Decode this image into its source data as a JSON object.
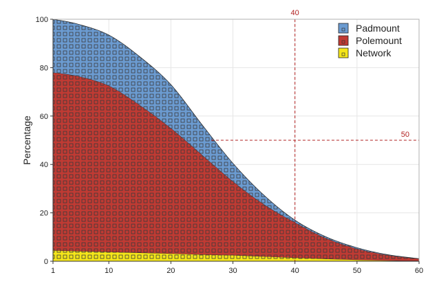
{
  "chart_data": {
    "type": "area",
    "stacked": true,
    "ylabel": "Percentage",
    "xlabel": "",
    "xlim": [
      1,
      60
    ],
    "ylim": [
      0,
      100
    ],
    "x_ticks": [
      1,
      10,
      20,
      30,
      40,
      50,
      60
    ],
    "y_ticks": [
      0,
      20,
      40,
      60,
      80,
      100
    ],
    "grid": true,
    "legend_position": "top-right",
    "x": [
      1,
      5,
      10,
      15,
      20,
      25,
      30,
      35,
      40,
      45,
      50,
      55,
      60
    ],
    "series": [
      {
        "name": "Network",
        "color": "#f5e619",
        "values": [
          4.5,
          4.2,
          3.9,
          3.5,
          3.2,
          2.8,
          2.5,
          2.0,
          1.5,
          1.0,
          0.6,
          0.3,
          0.2
        ]
      },
      {
        "name": "Polemount",
        "color": "#c03a33",
        "values": [
          73.5,
          72.3,
          68.6,
          61.0,
          51.8,
          41.2,
          30.5,
          21.5,
          14.5,
          8.5,
          4.6,
          2.2,
          0.8
        ]
      },
      {
        "name": "Padmount",
        "color": "#6b9bd1",
        "values": [
          22.0,
          21.5,
          21.0,
          20.0,
          18.0,
          12.5,
          7.5,
          3.8,
          1.0,
          0.6,
          0.4,
          0.2,
          0.1
        ]
      }
    ],
    "legend_order": [
      "Padmount",
      "Polemount",
      "Network"
    ],
    "reference_lines": [
      {
        "axis": "x",
        "value": 40,
        "label": "40",
        "color": "#b22222"
      },
      {
        "axis": "y",
        "value": 50,
        "label": "50",
        "color": "#b22222",
        "x_start": 26.5
      }
    ]
  }
}
